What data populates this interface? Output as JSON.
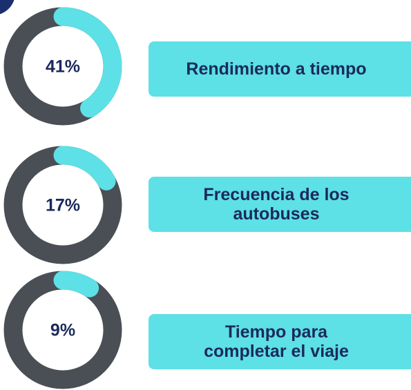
{
  "chart_data": [
    {
      "type": "donut",
      "categories": [
        "Rendimiento a tiempo"
      ],
      "values": [
        41
      ],
      "value_labels": [
        "41%"
      ],
      "color": "#5de0e6"
    },
    {
      "type": "donut",
      "categories": [
        "Frecuencia de los\nautobuses"
      ],
      "values": [
        17
      ],
      "value_labels": [
        "17%"
      ],
      "color": "#5de0e6"
    },
    {
      "type": "donut",
      "categories": [
        "Tiempo para\ncompletar el viaje"
      ],
      "values": [
        9
      ],
      "value_labels": [
        "9%"
      ],
      "color": "#5de0e6"
    }
  ]
}
